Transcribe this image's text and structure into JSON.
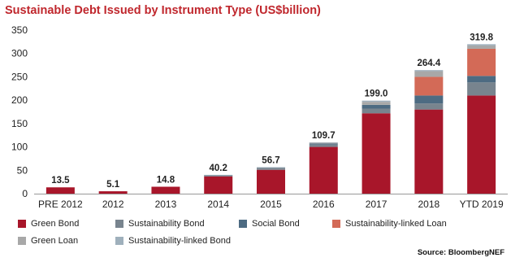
{
  "title": "Sustainable Debt Issued by Instrument Type (US$billion)",
  "source": "Source: BloombergNEF",
  "chart_data": {
    "type": "bar",
    "stacked": true,
    "title": "Sustainable Debt Issued by Instrument Type (US$billion)",
    "xlabel": "",
    "ylabel": "",
    "ylim": [
      0,
      350
    ],
    "yticks": [
      "0",
      "50",
      "100",
      "150",
      "200",
      "250",
      "300",
      "350"
    ],
    "grid": false,
    "legend_position": "bottom",
    "categories": [
      "PRE 2012",
      "2012",
      "2013",
      "2014",
      "2015",
      "2016",
      "2017",
      "2018",
      "YTD 2019"
    ],
    "totals": [
      "13.5",
      "5.1",
      "14.8",
      "40.2",
      "56.7",
      "109.7",
      "199.0",
      "264.4",
      "319.8"
    ],
    "series": [
      {
        "name": "Green Bond",
        "color": "#a8162a",
        "values": [
          13.5,
          5.1,
          14.8,
          37.0,
          51.0,
          100.0,
          172.0,
          180.0,
          210.0
        ]
      },
      {
        "name": "Sustainability Bond",
        "color": "#78848e",
        "values": [
          0,
          0,
          0,
          1.5,
          3.5,
          5.0,
          10.0,
          13.0,
          28.0
        ]
      },
      {
        "name": "Social Bond",
        "color": "#4d6b82",
        "values": [
          0,
          0,
          0,
          0.5,
          1.0,
          2.0,
          8.0,
          17.0,
          14.0
        ]
      },
      {
        "name": "Sustainability-linked Loan",
        "color": "#d36a57",
        "values": [
          0,
          0,
          0,
          0,
          0,
          0,
          0,
          40.0,
          58.0
        ]
      },
      {
        "name": "Green Loan",
        "color": "#a8a8a8",
        "values": [
          0,
          0,
          0,
          0.9,
          0.7,
          2.2,
          6.5,
          12.0,
          7.0
        ]
      },
      {
        "name": "Sustainability-linked Bond",
        "color": "#9fb0bc",
        "values": [
          0,
          0,
          0,
          0.3,
          0.5,
          0.5,
          2.5,
          2.4,
          2.8
        ]
      }
    ]
  }
}
